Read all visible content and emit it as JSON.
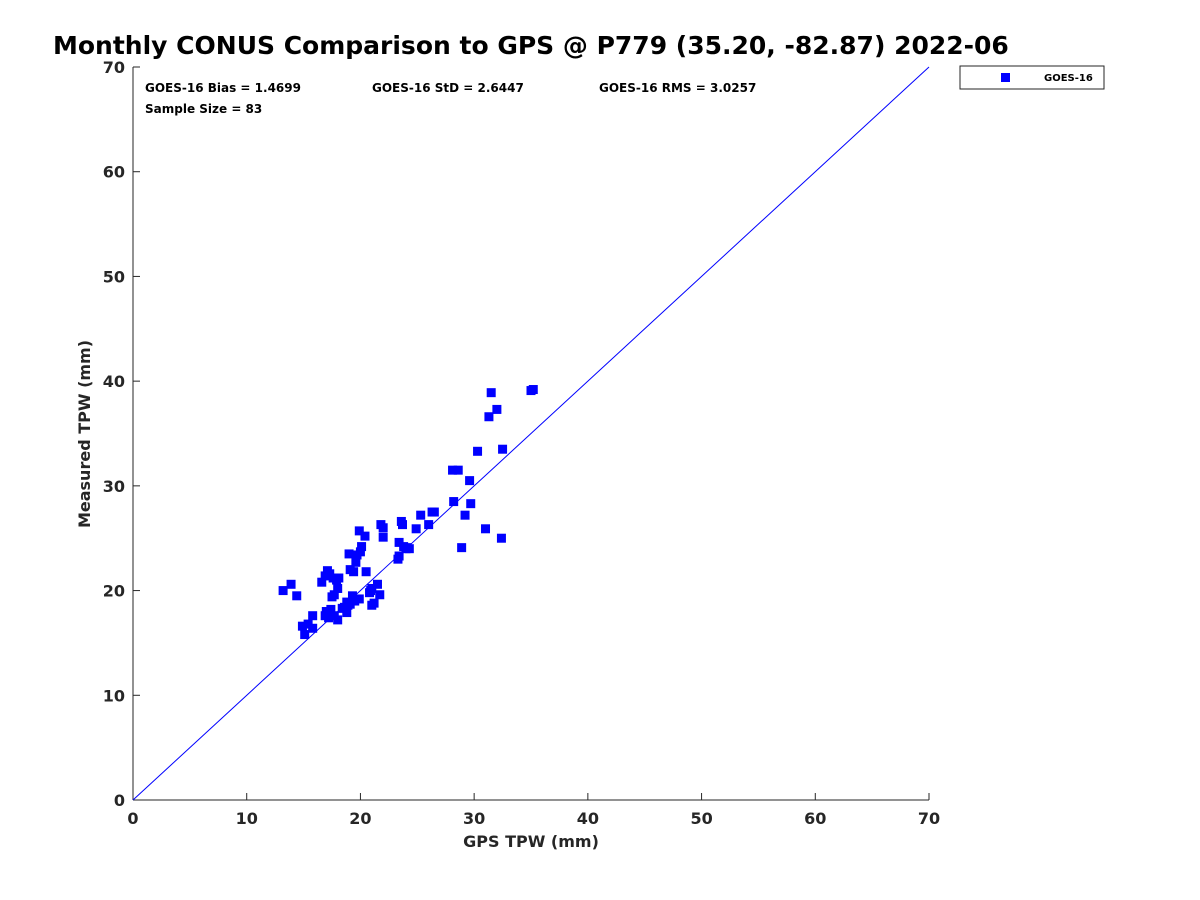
{
  "chart_data": {
    "type": "scatter",
    "title": "Monthly CONUS Comparison to GPS @ P779 (35.20, -82.87) 2022-06",
    "xlabel": "GPS TPW (mm)",
    "ylabel": "Measured TPW (mm)",
    "xlim": [
      0,
      70
    ],
    "ylim": [
      0,
      70
    ],
    "xticks": [
      0,
      10,
      20,
      30,
      40,
      50,
      60,
      70
    ],
    "yticks": [
      0,
      10,
      20,
      30,
      40,
      50,
      60,
      70
    ],
    "grid": false,
    "legend_position": "outside-top-right",
    "reference_line": {
      "from": [
        0,
        0
      ],
      "to": [
        70,
        70
      ],
      "color": "#0000ff"
    },
    "stats": {
      "bias": "GOES-16 Bias = 1.4699",
      "std": "GOES-16 StD = 2.6447",
      "rms": "GOES-16 RMS = 3.0257",
      "sample_size": "Sample Size = 83"
    },
    "series": [
      {
        "name": "GOES-16",
        "color": "#0000ff",
        "marker": "square",
        "points": [
          [
            13.2,
            20.0
          ],
          [
            13.9,
            20.6
          ],
          [
            14.4,
            19.5
          ],
          [
            14.9,
            16.6
          ],
          [
            15.1,
            15.8
          ],
          [
            15.4,
            16.8
          ],
          [
            15.8,
            16.4
          ],
          [
            15.8,
            17.6
          ],
          [
            16.6,
            20.8
          ],
          [
            16.9,
            21.4
          ],
          [
            16.9,
            17.6
          ],
          [
            17.0,
            18.0
          ],
          [
            17.1,
            21.9
          ],
          [
            17.2,
            17.4
          ],
          [
            17.4,
            18.2
          ],
          [
            17.5,
            19.4
          ],
          [
            17.6,
            21.2
          ],
          [
            17.7,
            17.6
          ],
          [
            17.7,
            19.6
          ],
          [
            17.9,
            21.0
          ],
          [
            18.0,
            17.2
          ],
          [
            18.0,
            20.2
          ],
          [
            18.1,
            21.2
          ],
          [
            18.6,
            18.4
          ],
          [
            18.8,
            18.9
          ],
          [
            18.8,
            17.9
          ],
          [
            19.0,
            23.5
          ],
          [
            19.1,
            22.0
          ],
          [
            19.1,
            18.7
          ],
          [
            19.3,
            19.5
          ],
          [
            19.4,
            21.8
          ],
          [
            19.5,
            19.0
          ],
          [
            19.6,
            22.7
          ],
          [
            19.7,
            23.4
          ],
          [
            19.9,
            25.7
          ],
          [
            19.9,
            19.2
          ],
          [
            20.0,
            23.7
          ],
          [
            20.1,
            24.2
          ],
          [
            20.4,
            25.2
          ],
          [
            20.5,
            21.8
          ],
          [
            20.9,
            20.0
          ],
          [
            21.0,
            18.6
          ],
          [
            21.0,
            20.2
          ],
          [
            21.2,
            18.8
          ],
          [
            21.5,
            20.6
          ],
          [
            21.7,
            19.6
          ],
          [
            21.8,
            26.3
          ],
          [
            22.0,
            26.0
          ],
          [
            22.0,
            25.1
          ],
          [
            23.3,
            23.0
          ],
          [
            23.4,
            23.3
          ],
          [
            23.4,
            24.6
          ],
          [
            23.6,
            26.6
          ],
          [
            23.7,
            26.3
          ],
          [
            23.8,
            24.2
          ],
          [
            24.0,
            24.0
          ],
          [
            24.3,
            24.0
          ],
          [
            24.9,
            25.9
          ],
          [
            25.3,
            27.2
          ],
          [
            26.0,
            26.3
          ],
          [
            26.3,
            27.5
          ],
          [
            26.5,
            27.5
          ],
          [
            28.1,
            31.5
          ],
          [
            28.2,
            28.5
          ],
          [
            28.6,
            31.5
          ],
          [
            28.9,
            24.1
          ],
          [
            29.2,
            27.2
          ],
          [
            29.6,
            30.5
          ],
          [
            29.7,
            28.3
          ],
          [
            30.3,
            33.3
          ],
          [
            31.0,
            25.9
          ],
          [
            31.3,
            36.6
          ],
          [
            31.5,
            38.9
          ],
          [
            32.0,
            37.3
          ],
          [
            32.4,
            25.0
          ],
          [
            32.5,
            33.5
          ],
          [
            35.0,
            39.1
          ],
          [
            35.2,
            39.2
          ],
          [
            18.4,
            18.3
          ],
          [
            17.3,
            21.6
          ],
          [
            20.8,
            19.8
          ],
          [
            24.1,
            24.1
          ],
          [
            18.9,
            18.6
          ]
        ]
      }
    ]
  }
}
